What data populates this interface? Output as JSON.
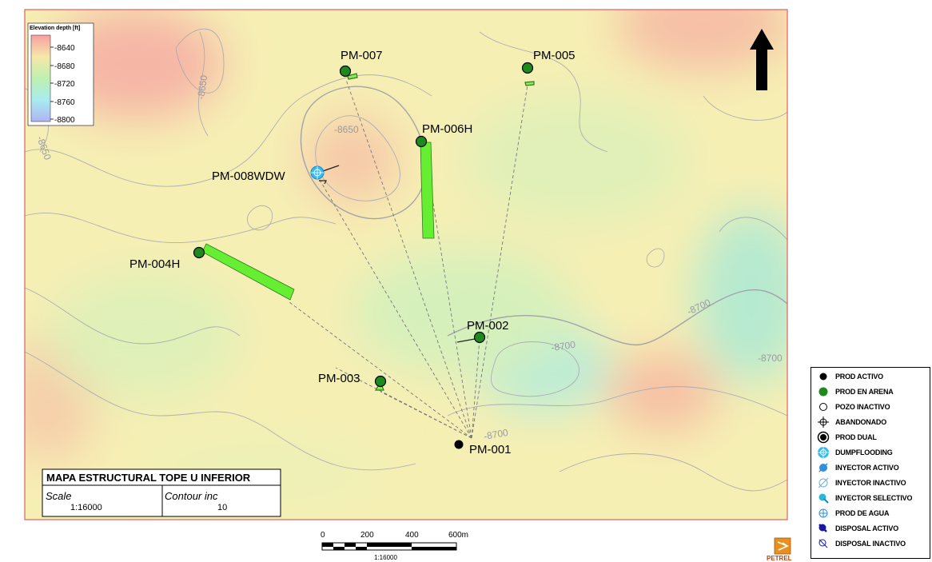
{
  "map": {
    "colorbar": {
      "title": "Elevation depth [ft]",
      "ticks": [
        "-8640",
        "-8680",
        "-8720",
        "-8760",
        "-8800"
      ]
    },
    "contour_labels": [
      {
        "id": "c1",
        "text": "-8650"
      },
      {
        "id": "c2",
        "text": "-8650"
      },
      {
        "id": "c3",
        "text": "-8650"
      },
      {
        "id": "c4",
        "text": "-8700"
      },
      {
        "id": "c5",
        "text": "-8700"
      },
      {
        "id": "c6",
        "text": "-8700"
      },
      {
        "id": "c7",
        "text": "-8700"
      }
    ],
    "wells": [
      {
        "name": "PM-007",
        "type": "PROD EN ARENA"
      },
      {
        "name": "PM-005",
        "type": "PROD EN ARENA"
      },
      {
        "name": "PM-006H",
        "type": "PROD EN ARENA"
      },
      {
        "name": "PM-008WDW",
        "type": "DUMPFLOODING"
      },
      {
        "name": "PM-004H",
        "type": "PROD EN ARENA"
      },
      {
        "name": "PM-002",
        "type": "PROD EN ARENA"
      },
      {
        "name": "PM-003",
        "type": "PROD EN ARENA"
      },
      {
        "name": "PM-001",
        "type": "PROD ACTIVO"
      }
    ],
    "title_box": {
      "title": "MAPA ESTRUCTURAL TOPE U INFERIOR",
      "scale_label": "Scale",
      "scale_value": "1:16000",
      "contour_label": "Contour inc",
      "contour_value": "10"
    },
    "scale_bar": {
      "ticks": [
        "0",
        "200",
        "400",
        "600m"
      ],
      "caption": "1:16000"
    },
    "logo_text": "PETREL",
    "colors": {
      "prod_en_arena": "#1e8a1e",
      "dumpflooding": "#33bbee",
      "horizontal_well": "#66ee33",
      "frame": "#e06060"
    }
  },
  "legend": {
    "items": [
      {
        "label": "PROD ACTIVO",
        "icon": "black-dot-icon"
      },
      {
        "label": "PROD EN ARENA",
        "icon": "green-dot-icon"
      },
      {
        "label": "POZO INACTIVO",
        "icon": "hollow-circle-icon"
      },
      {
        "label": "ABANDONADO",
        "icon": "crosshair-icon"
      },
      {
        "label": "PROD DUAL",
        "icon": "double-circle-icon"
      },
      {
        "label": "DUMPFLOODING",
        "icon": "dumpflooding-icon"
      },
      {
        "label": "INYECTOR ACTIVO",
        "icon": "injector-active-icon"
      },
      {
        "label": "INYECTOR INACTIVO",
        "icon": "injector-inactive-icon"
      },
      {
        "label": "INYECTOR SELECTIVO",
        "icon": "injector-selective-icon"
      },
      {
        "label": "PROD DE AGUA",
        "icon": "water-producer-icon"
      },
      {
        "label": "DISPOSAL ACTIVO",
        "icon": "disposal-active-icon"
      },
      {
        "label": "DISPOSAL INACTIVO",
        "icon": "disposal-inactive-icon"
      }
    ]
  }
}
